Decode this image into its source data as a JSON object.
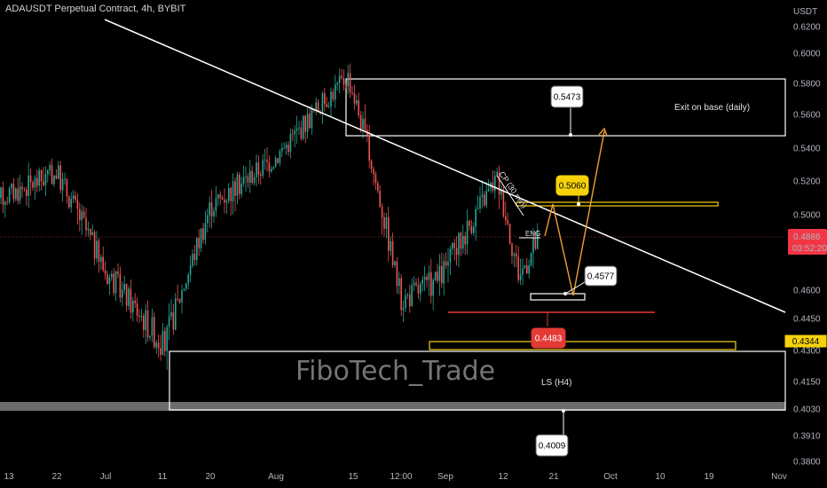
{
  "header": {
    "title": "ADAUSDT Perpetual Contract, 4h, BYBIT"
  },
  "axis": {
    "currency_label": "USDT"
  },
  "colors": {
    "background": "#000000",
    "up": "#26a69a",
    "down": "#ef5350",
    "white": "#ffffff",
    "yellow": "#f5d20a",
    "orange": "#f0a030",
    "red": "#e53935",
    "price_tag": "#f23645"
  },
  "chart_data": {
    "type": "candlestick",
    "symbol": "ADAUSDT",
    "timeframe": "4h",
    "exchange": "BYBIT",
    "price_scale": {
      "ticks": [
        0.62,
        0.6,
        0.58,
        0.56,
        0.54,
        0.52,
        0.5,
        0.4886,
        0.46,
        0.445,
        0.43,
        0.415,
        0.403,
        0.391,
        0.38
      ],
      "tick_labels": [
        "0.6200",
        "0.6000",
        "0.5800",
        "0.5600",
        "0.5400",
        "0.5200",
        "0.5000",
        "0.4600",
        "0.4450",
        "0.4300",
        "0.4150",
        "0.4030",
        "0.3910",
        "0.3800"
      ],
      "range": [
        0.378,
        0.625
      ]
    },
    "time_scale": {
      "tick_labels": [
        "13",
        "22",
        "Jul",
        "11",
        "20",
        "Aug",
        "15",
        "12:00",
        "Sep",
        "12",
        "21",
        "Oct",
        "10",
        "19",
        "Nov"
      ]
    },
    "current_price": {
      "value": "0.4886",
      "countdown": "03:52:20"
    },
    "price_series": {
      "description_points": [
        [
          "13",
          0.51
        ],
        [
          "22",
          0.525
        ],
        [
          "Jul",
          0.47
        ],
        [
          "11",
          0.432
        ],
        [
          "20",
          0.505
        ],
        [
          "Aug",
          0.535
        ],
        [
          "15",
          0.585
        ],
        [
          "15",
          0.55
        ],
        [
          "12:00",
          0.455
        ],
        [
          "Sep",
          0.466
        ],
        [
          "12",
          0.522
        ],
        [
          "12",
          0.468
        ],
        [
          "21",
          0.488
        ]
      ]
    },
    "levels": [
      {
        "label": "0.5473",
        "value": 0.5473,
        "color": "white"
      },
      {
        "label": "0.5060",
        "value": 0.506,
        "color": "yellow"
      },
      {
        "label": "0.4577",
        "value": 0.4577,
        "color": "white"
      },
      {
        "label": "0.4483",
        "value": 0.4483,
        "color": "red"
      },
      {
        "label": "0.4344",
        "value": 0.4344,
        "color": "yellow"
      },
      {
        "label": "0.4009",
        "value": 0.4009,
        "color": "white"
      }
    ],
    "annotations": [
      {
        "text": "Exit on base (daily)"
      },
      {
        "text": "ENG"
      },
      {
        "text": "CP (30 min)"
      },
      {
        "text": "LS (H4)"
      }
    ],
    "watermark": "FiboTech_Trade"
  }
}
